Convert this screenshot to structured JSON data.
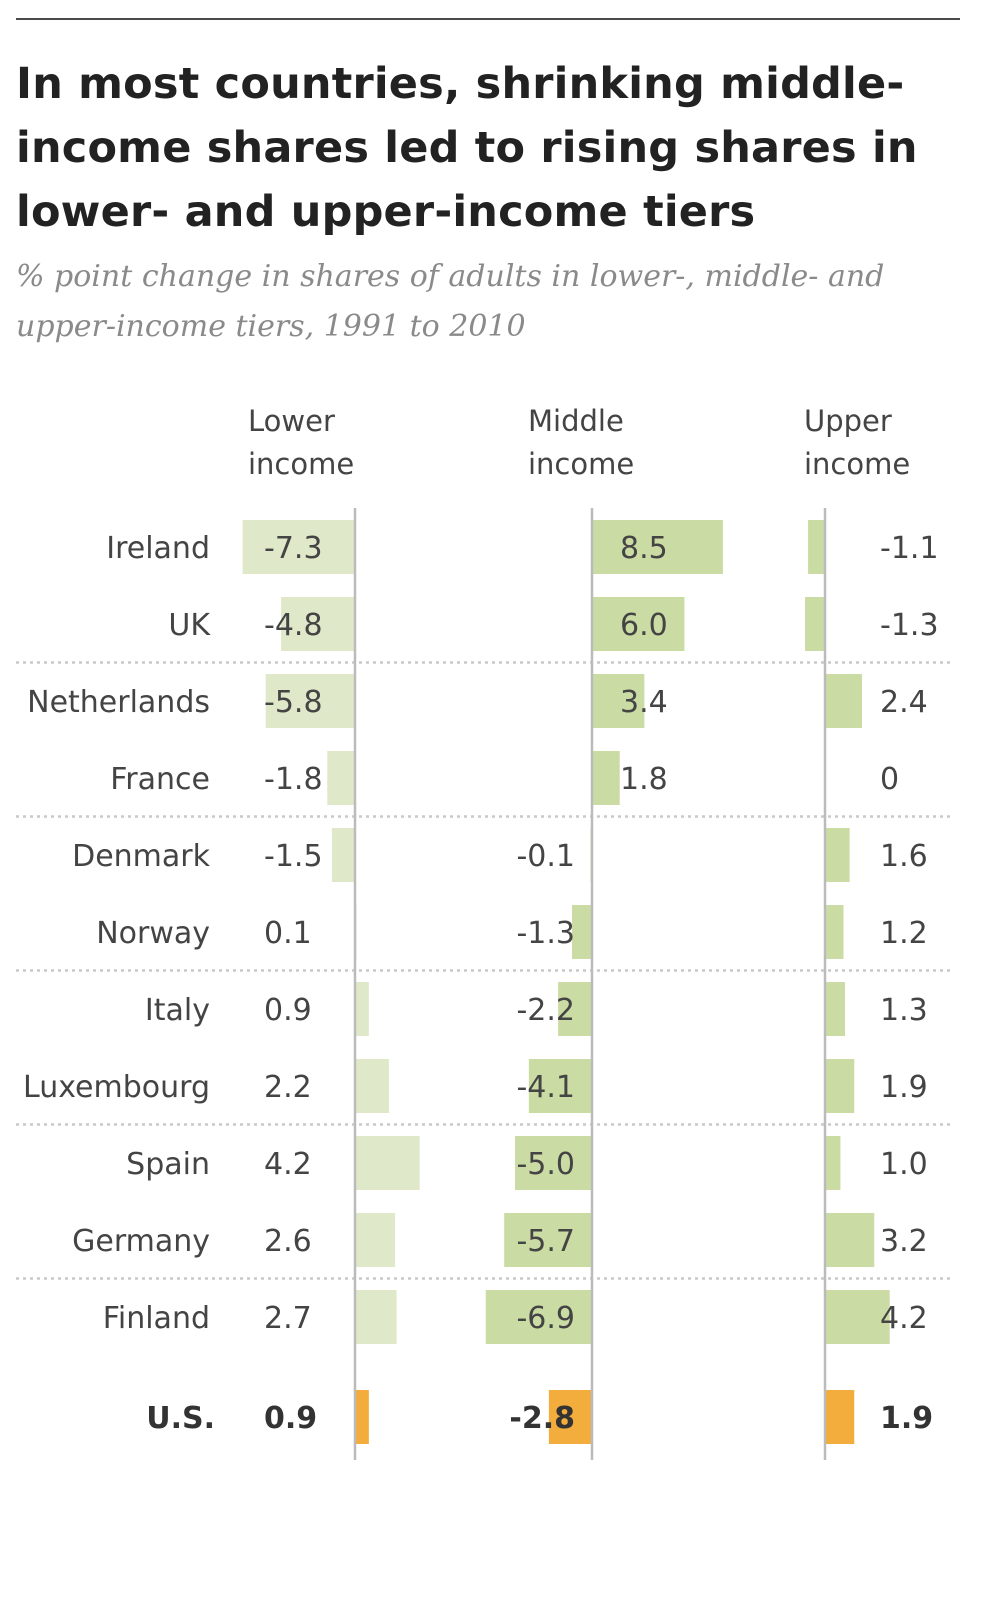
{
  "chart_data": {
    "type": "bar",
    "title": "In most countries, shrinking middle-income shares led to rising shares in lower- and upper-income tiers",
    "subtitle": "% point change in shares of adults in lower-, middle- and upper-income tiers, 1991 to 2010",
    "categories": [
      "Ireland",
      "UK",
      "Netherlands",
      "France",
      "Denmark",
      "Norway",
      "Italy",
      "Luxembourg",
      "Spain",
      "Germany",
      "Finland",
      "U.S."
    ],
    "series": [
      {
        "name": "Lower income",
        "values": [
          -7.3,
          -4.8,
          -5.8,
          -1.8,
          -1.5,
          0.1,
          0.9,
          2.2,
          4.2,
          2.6,
          2.7,
          0.9
        ],
        "labels": [
          "-7.3",
          "-4.8",
          "-5.8",
          "-1.8",
          "-1.5",
          "0.1",
          "0.9",
          "2.2",
          "4.2",
          "2.6",
          "2.7",
          "0.9"
        ]
      },
      {
        "name": "Middle income",
        "values": [
          8.5,
          6.0,
          3.4,
          1.8,
          -0.1,
          -1.3,
          -2.2,
          -4.1,
          -5.0,
          -5.7,
          -6.9,
          -2.8
        ],
        "labels": [
          "8.5",
          "6.0",
          "3.4",
          "1.8",
          "-0.1",
          "-1.3",
          "-2.2",
          "-4.1",
          "-5.0",
          "-5.7",
          "-6.9",
          "-2.8"
        ]
      },
      {
        "name": "Upper income",
        "values": [
          -1.1,
          -1.3,
          2.4,
          0,
          1.6,
          1.2,
          1.3,
          1.9,
          1.0,
          3.2,
          4.2,
          1.9
        ],
        "labels": [
          "-1.1",
          "-1.3",
          "2.4",
          "0",
          "1.6",
          "1.2",
          "1.3",
          "1.9",
          "1.0",
          "3.2",
          "4.2",
          "1.9"
        ]
      }
    ],
    "highlight_category": "U.S.",
    "colors": {
      "lower": "#dfe8c9",
      "middle": "#cbdba4",
      "upper": "#cbdba4",
      "highlight": "#f2ad3c",
      "axis": "#bbbbbb",
      "separator": "#c9c9c9"
    }
  },
  "headers": {
    "lower": "Lower\nincome",
    "middle": "Middle\nincome",
    "upper": "Upper\nincome"
  }
}
